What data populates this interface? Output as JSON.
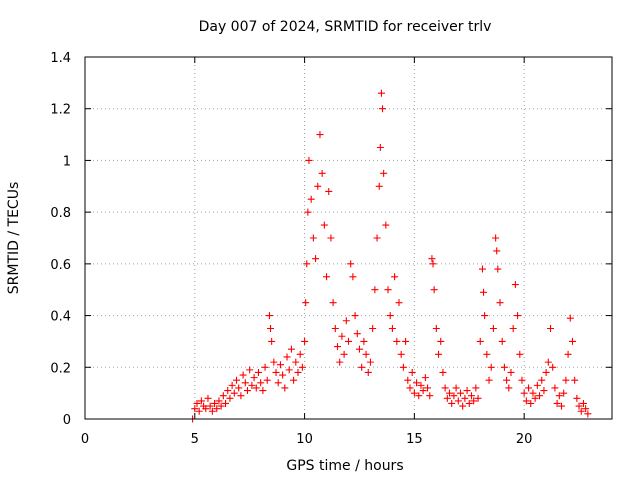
{
  "chart_data": {
    "type": "scatter",
    "title": "Day 007 of 2024, SRMTID for receiver trlv",
    "xlabel": "GPS time / hours",
    "ylabel": "SRMTID / TECUs",
    "xlim": [
      0,
      24
    ],
    "ylim": [
      0,
      1.4
    ],
    "xticks": [
      0,
      5,
      10,
      15,
      20
    ],
    "yticks": [
      0,
      0.2,
      0.4,
      0.6,
      0.8,
      1,
      1.2,
      1.4
    ],
    "xtick_labels": [
      "0",
      "5",
      "10",
      "15",
      "20"
    ],
    "ytick_labels": [
      "0",
      "0.2",
      "0.4",
      "0.6",
      "0.8",
      "1",
      "1.2",
      "1.4"
    ],
    "grid": true,
    "marker": "+",
    "color": "#ff0000",
    "series": [
      {
        "name": "trlv",
        "points": [
          [
            4.9,
            0.0
          ],
          [
            5.0,
            0.04
          ],
          [
            5.1,
            0.06
          ],
          [
            5.2,
            0.03
          ],
          [
            5.3,
            0.07
          ],
          [
            5.4,
            0.05
          ],
          [
            5.5,
            0.04
          ],
          [
            5.6,
            0.08
          ],
          [
            5.7,
            0.05
          ],
          [
            5.8,
            0.03
          ],
          [
            5.9,
            0.06
          ],
          [
            6.0,
            0.04
          ],
          [
            6.1,
            0.07
          ],
          [
            6.2,
            0.05
          ],
          [
            6.3,
            0.09
          ],
          [
            6.4,
            0.06
          ],
          [
            6.5,
            0.11
          ],
          [
            6.6,
            0.08
          ],
          [
            6.7,
            0.13
          ],
          [
            6.8,
            0.1
          ],
          [
            6.9,
            0.15
          ],
          [
            7.0,
            0.12
          ],
          [
            7.1,
            0.09
          ],
          [
            7.2,
            0.17
          ],
          [
            7.3,
            0.14
          ],
          [
            7.4,
            0.11
          ],
          [
            7.5,
            0.19
          ],
          [
            7.6,
            0.13
          ],
          [
            7.7,
            0.16
          ],
          [
            7.8,
            0.12
          ],
          [
            7.9,
            0.18
          ],
          [
            8.0,
            0.14
          ],
          [
            8.1,
            0.11
          ],
          [
            8.2,
            0.2
          ],
          [
            8.3,
            0.15
          ],
          [
            8.4,
            0.4
          ],
          [
            8.45,
            0.35
          ],
          [
            8.5,
            0.3
          ],
          [
            8.6,
            0.22
          ],
          [
            8.7,
            0.18
          ],
          [
            8.8,
            0.14
          ],
          [
            8.9,
            0.21
          ],
          [
            9.0,
            0.17
          ],
          [
            9.1,
            0.12
          ],
          [
            9.2,
            0.24
          ],
          [
            9.3,
            0.19
          ],
          [
            9.4,
            0.27
          ],
          [
            9.5,
            0.15
          ],
          [
            9.6,
            0.22
          ],
          [
            9.7,
            0.18
          ],
          [
            9.8,
            0.25
          ],
          [
            9.9,
            0.2
          ],
          [
            10.0,
            0.3
          ],
          [
            10.05,
            0.45
          ],
          [
            10.1,
            0.6
          ],
          [
            10.15,
            0.8
          ],
          [
            10.2,
            1.0
          ],
          [
            10.3,
            0.85
          ],
          [
            10.4,
            0.7
          ],
          [
            10.5,
            0.62
          ],
          [
            10.6,
            0.9
          ],
          [
            10.7,
            1.1
          ],
          [
            10.8,
            0.95
          ],
          [
            10.9,
            0.75
          ],
          [
            11.0,
            0.55
          ],
          [
            11.1,
            0.88
          ],
          [
            11.2,
            0.7
          ],
          [
            11.3,
            0.45
          ],
          [
            11.4,
            0.35
          ],
          [
            11.5,
            0.28
          ],
          [
            11.6,
            0.22
          ],
          [
            11.7,
            0.32
          ],
          [
            11.8,
            0.25
          ],
          [
            11.9,
            0.38
          ],
          [
            12.0,
            0.3
          ],
          [
            12.1,
            0.6
          ],
          [
            12.2,
            0.55
          ],
          [
            12.3,
            0.4
          ],
          [
            12.4,
            0.33
          ],
          [
            12.5,
            0.27
          ],
          [
            12.6,
            0.2
          ],
          [
            12.7,
            0.3
          ],
          [
            12.8,
            0.25
          ],
          [
            12.9,
            0.18
          ],
          [
            13.0,
            0.22
          ],
          [
            13.1,
            0.35
          ],
          [
            13.2,
            0.5
          ],
          [
            13.3,
            0.7
          ],
          [
            13.4,
            0.9
          ],
          [
            13.45,
            1.05
          ],
          [
            13.5,
            1.26
          ],
          [
            13.55,
            1.2
          ],
          [
            13.6,
            0.95
          ],
          [
            13.7,
            0.75
          ],
          [
            13.8,
            0.5
          ],
          [
            13.9,
            0.4
          ],
          [
            14.0,
            0.35
          ],
          [
            14.1,
            0.55
          ],
          [
            14.2,
            0.3
          ],
          [
            14.3,
            0.45
          ],
          [
            14.4,
            0.25
          ],
          [
            14.5,
            0.2
          ],
          [
            14.6,
            0.3
          ],
          [
            14.7,
            0.15
          ],
          [
            14.8,
            0.12
          ],
          [
            14.9,
            0.18
          ],
          [
            15.0,
            0.1
          ],
          [
            15.1,
            0.14
          ],
          [
            15.2,
            0.09
          ],
          [
            15.3,
            0.13
          ],
          [
            15.4,
            0.11
          ],
          [
            15.5,
            0.16
          ],
          [
            15.6,
            0.12
          ],
          [
            15.7,
            0.09
          ],
          [
            15.8,
            0.62
          ],
          [
            15.85,
            0.6
          ],
          [
            15.9,
            0.5
          ],
          [
            16.0,
            0.35
          ],
          [
            16.1,
            0.25
          ],
          [
            16.2,
            0.3
          ],
          [
            16.3,
            0.18
          ],
          [
            16.4,
            0.12
          ],
          [
            16.5,
            0.08
          ],
          [
            16.6,
            0.1
          ],
          [
            16.7,
            0.06
          ],
          [
            16.8,
            0.09
          ],
          [
            16.9,
            0.12
          ],
          [
            17.0,
            0.07
          ],
          [
            17.1,
            0.1
          ],
          [
            17.2,
            0.05
          ],
          [
            17.3,
            0.08
          ],
          [
            17.4,
            0.11
          ],
          [
            17.5,
            0.06
          ],
          [
            17.6,
            0.09
          ],
          [
            17.7,
            0.07
          ],
          [
            17.8,
            0.12
          ],
          [
            17.9,
            0.08
          ],
          [
            18.0,
            0.3
          ],
          [
            18.1,
            0.58
          ],
          [
            18.15,
            0.49
          ],
          [
            18.2,
            0.4
          ],
          [
            18.3,
            0.25
          ],
          [
            18.4,
            0.15
          ],
          [
            18.5,
            0.2
          ],
          [
            18.6,
            0.35
          ],
          [
            18.7,
            0.7
          ],
          [
            18.75,
            0.65
          ],
          [
            18.8,
            0.58
          ],
          [
            18.9,
            0.45
          ],
          [
            19.0,
            0.3
          ],
          [
            19.1,
            0.2
          ],
          [
            19.2,
            0.15
          ],
          [
            19.3,
            0.12
          ],
          [
            19.4,
            0.18
          ],
          [
            19.5,
            0.35
          ],
          [
            19.6,
            0.52
          ],
          [
            19.7,
            0.4
          ],
          [
            19.8,
            0.25
          ],
          [
            19.9,
            0.15
          ],
          [
            20.0,
            0.1
          ],
          [
            20.1,
            0.07
          ],
          [
            20.2,
            0.12
          ],
          [
            20.3,
            0.06
          ],
          [
            20.4,
            0.1
          ],
          [
            20.5,
            0.08
          ],
          [
            20.6,
            0.13
          ],
          [
            20.7,
            0.09
          ],
          [
            20.8,
            0.15
          ],
          [
            20.9,
            0.11
          ],
          [
            21.0,
            0.18
          ],
          [
            21.1,
            0.22
          ],
          [
            21.2,
            0.35
          ],
          [
            21.3,
            0.2
          ],
          [
            21.4,
            0.12
          ],
          [
            21.5,
            0.06
          ],
          [
            21.6,
            0.09
          ],
          [
            21.7,
            0.05
          ],
          [
            21.8,
            0.1
          ],
          [
            21.9,
            0.15
          ],
          [
            22.0,
            0.25
          ],
          [
            22.1,
            0.39
          ],
          [
            22.2,
            0.3
          ],
          [
            22.3,
            0.15
          ],
          [
            22.4,
            0.08
          ],
          [
            22.5,
            0.05
          ],
          [
            22.6,
            0.03
          ],
          [
            22.7,
            0.06
          ],
          [
            22.8,
            0.04
          ],
          [
            22.9,
            0.02
          ]
        ]
      }
    ]
  }
}
